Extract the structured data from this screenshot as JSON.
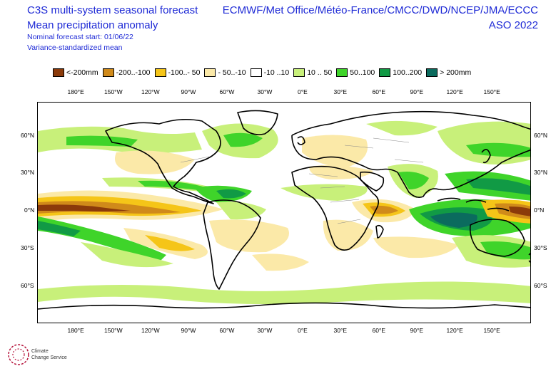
{
  "header": {
    "title_line1": "C3S multi-system seasonal forecast",
    "title_line2": "Mean precipitation anomaly",
    "start_line": "Nominal forecast start: 01/06/22",
    "method_line": "Variance-standardized mean",
    "models_line": "ECMWF/Met Office/Météo-France/CMCC/DWD/NCEP/JMA/ECCC",
    "season_line": "ASO 2022"
  },
  "legend": [
    {
      "label": "<-200mm",
      "color": "#8b3a0a"
    },
    {
      "label": "-200..-100",
      "color": "#d08a1a"
    },
    {
      "label": "-100..- 50",
      "color": "#f5c518"
    },
    {
      "label": "- 50..-10",
      "color": "#fbe9a8"
    },
    {
      "label": "-10 ..10",
      "color": "#ffffff"
    },
    {
      "label": "10 .. 50",
      "color": "#c8f07a"
    },
    {
      "label": "50..100",
      "color": "#3fd42a"
    },
    {
      "label": "100..200",
      "color": "#119a45"
    },
    {
      "label": "> 200mm",
      "color": "#0b6b5e"
    }
  ],
  "axes": {
    "lon_ticks": [
      "180°E",
      "150°W",
      "120°W",
      "90°W",
      "60°W",
      "30°W",
      "0°E",
      "30°E",
      "60°E",
      "90°E",
      "120°E",
      "150°E"
    ],
    "lat_ticks": [
      "60°N",
      "30°N",
      "0°N",
      "30°S",
      "60°S"
    ]
  },
  "logo": {
    "line1": "Climate",
    "line2": "Change Service"
  }
}
